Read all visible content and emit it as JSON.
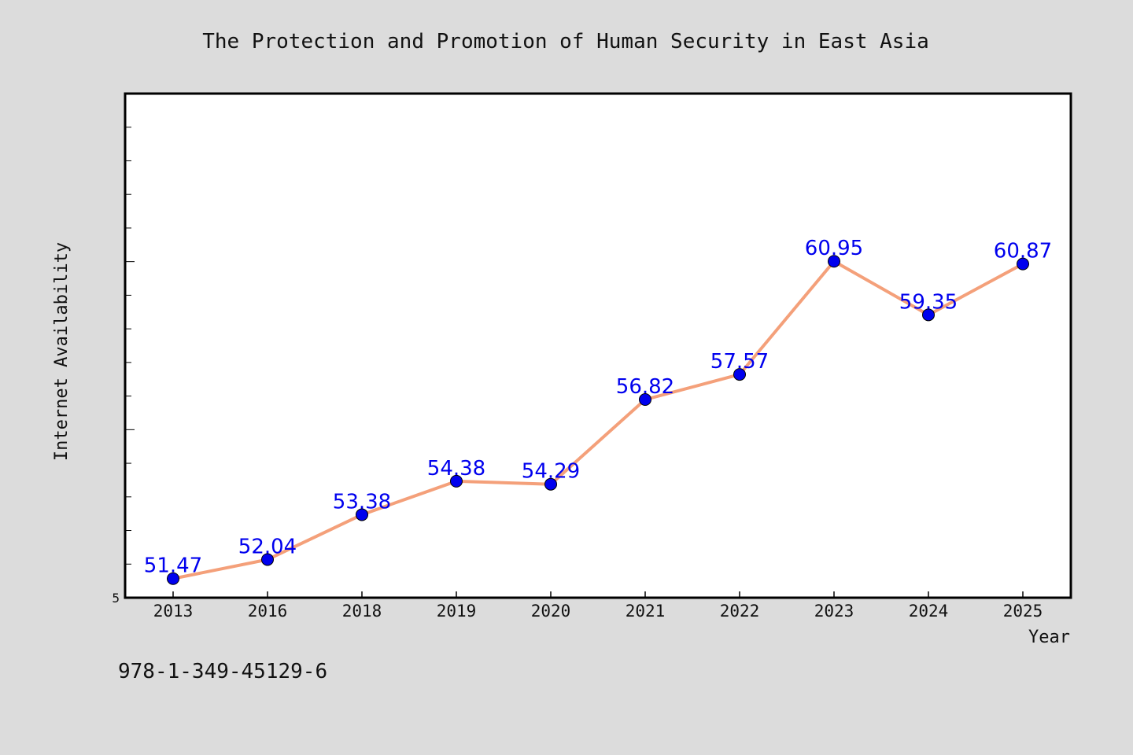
{
  "chart_data": {
    "type": "line",
    "title": "The Protection and Promotion of Human Security in East Asia",
    "xlabel": "Year",
    "ylabel": "Internet Availability",
    "categories": [
      "2013",
      "2016",
      "2018",
      "2019",
      "2020",
      "2021",
      "2022",
      "2023",
      "2024",
      "2025"
    ],
    "series": [
      {
        "values": [
          51.47,
          52.04,
          53.38,
          54.38,
          54.29,
          56.82,
          57.57,
          60.95,
          59.35,
          60.87
        ],
        "line_color": "#f4a07a",
        "marker_color": "#0000ee",
        "label_color": "#0000ee"
      }
    ],
    "ylim": [
      50.9,
      65.96
    ],
    "y_tick_labels": [
      "5"
    ],
    "grid": false
  },
  "footer": {
    "isbn": "978-1-349-45129-6"
  },
  "colors": {
    "background": "#dcdcdc",
    "plot_background": "#ffffff"
  }
}
